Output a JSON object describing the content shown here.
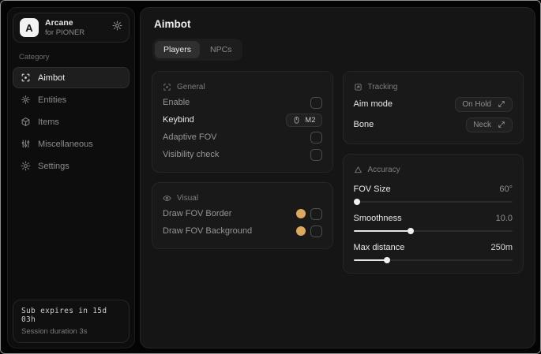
{
  "app": {
    "name": "Arcane",
    "subtitle": "for PIONER",
    "logo_letter": "A"
  },
  "sidebar": {
    "category_label": "Category",
    "items": [
      {
        "label": "Aimbot",
        "icon": "crosshair-icon",
        "active": true
      },
      {
        "label": "Entities",
        "icon": "atom-icon",
        "active": false
      },
      {
        "label": "Items",
        "icon": "box-icon",
        "active": false
      },
      {
        "label": "Miscellaneous",
        "icon": "sliders-icon",
        "active": false
      },
      {
        "label": "Settings",
        "icon": "gear-icon",
        "active": false
      }
    ],
    "footer": {
      "line1": "Sub expires in 15d 03h",
      "line2": "Session duration 3s"
    }
  },
  "main": {
    "title": "Aimbot",
    "tabs": [
      {
        "label": "Players",
        "active": true
      },
      {
        "label": "NPCs",
        "active": false
      }
    ],
    "panels": {
      "general": {
        "title": "General",
        "rows": [
          {
            "label": "Enable",
            "control": "checkbox",
            "checked": false
          },
          {
            "label": "Keybind",
            "control": "keybind",
            "value": "M2"
          },
          {
            "label": "Adaptive FOV",
            "control": "checkbox",
            "checked": false
          },
          {
            "label": "Visibility check",
            "control": "checkbox",
            "checked": false
          }
        ]
      },
      "visual": {
        "title": "Visual",
        "rows": [
          {
            "label": "Draw FOV Border",
            "control": "color-checkbox",
            "color": "#dfa95d",
            "checked": false
          },
          {
            "label": "Draw FOV Background",
            "control": "color-checkbox",
            "color": "#dfa95d",
            "checked": false
          }
        ]
      },
      "tracking": {
        "title": "Tracking",
        "rows": [
          {
            "label": "Aim mode",
            "control": "dropdown",
            "value": "On Hold"
          },
          {
            "label": "Bone",
            "control": "dropdown",
            "value": "Neck"
          }
        ]
      },
      "accuracy": {
        "title": "Accuracy",
        "sliders": [
          {
            "label": "FOV Size",
            "value": "60°",
            "percent": 2
          },
          {
            "label": "Smoothness",
            "value": "10.0",
            "percent": 36
          },
          {
            "label": "Max distance",
            "value": "250m",
            "percent": 21
          }
        ]
      }
    }
  },
  "colors": {
    "accent_amber": "#dfa95d"
  }
}
